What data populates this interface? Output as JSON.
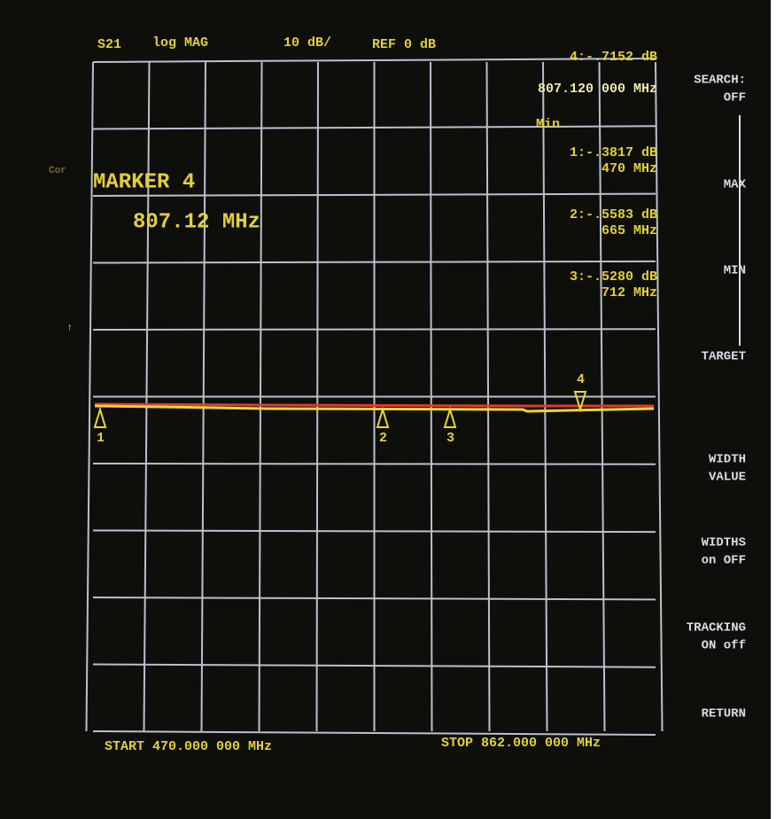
{
  "header": {
    "parameter": "S21",
    "format": "log MAG",
    "scale": "10 dB/",
    "reference": "REF 0 dB",
    "active_marker_value": "4:-.7152 dB",
    "active_marker_freq": "807.120 000 MHz",
    "search_mode": "Min"
  },
  "marker_list": [
    {
      "value": "1:-.3817 dB",
      "freq": "470 MHz"
    },
    {
      "value": "2:-.5583 dB",
      "freq": "665 MHz"
    },
    {
      "value": "3:-.5280 dB",
      "freq": "712 MHz"
    }
  ],
  "marker_entry": {
    "title": "MARKER 4",
    "freq": "807.12 MHz"
  },
  "left_annotations": {
    "cor": "Cor"
  },
  "trace_markers": [
    "1",
    "2",
    "3",
    "4"
  ],
  "softkeys": [
    {
      "line1": "SEARCH:",
      "line2": "OFF"
    },
    {
      "line1": "MAX"
    },
    {
      "line1": "MIN"
    },
    {
      "line1": "TARGET"
    },
    {
      "line1": "WIDTH",
      "line2": "VALUE"
    },
    {
      "line1": "WIDTHS",
      "line2": "on OFF"
    },
    {
      "line1": "TRACKING",
      "line2": "ON off"
    },
    {
      "line1": "RETURN"
    }
  ],
  "footer": {
    "start": "START  470.000 000 MHz",
    "stop": "STOP  862.000 000 MHz"
  }
}
